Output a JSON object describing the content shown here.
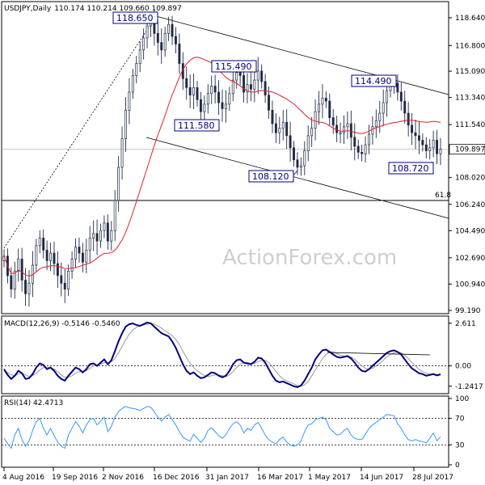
{
  "header": {
    "symbol": "USDJPY,Daily",
    "ohlc": "110.174 110.214 109.660 109.897",
    "macd_label": "MACD(12,26,9) -0.5146 -0.5460",
    "rsi_label": "RSI(14) 42.4713"
  },
  "watermark": "ActionForex.com",
  "colors": {
    "candle": "#1f2a44",
    "ma": "#e0202a",
    "macd": "#00007f",
    "signal": "#9a9a9a",
    "rsi": "#3399ff",
    "channel": "#000000",
    "box_border": "#000080"
  },
  "chart_data": [
    {
      "type": "candlestick",
      "name": "price",
      "ylim": [
        99.19,
        119.5
      ],
      "y_ticks": [
        "118.640",
        "116.800",
        "115.090",
        "113.340",
        "111.540",
        "109.897",
        "108.020",
        "106.240",
        "104.490",
        "102.690",
        "100.940",
        "99.190"
      ],
      "current_price": "109.897",
      "x_ticks": [
        "4 Aug 2016",
        "19 Sep 2016",
        "2 Nov 2016",
        "16 Dec 2016",
        "31 Jan 2017",
        "16 Mar 2017",
        "1 May 2017",
        "14 Jun 2017",
        "28 Jul 2017"
      ],
      "close_series": [
        102.8,
        101.5,
        100.6,
        101.8,
        102.6,
        101.2,
        100.3,
        101.0,
        102.2,
        103.5,
        104.0,
        103.2,
        102.5,
        103.0,
        102.3,
        101.5,
        101.0,
        100.6,
        101.8,
        102.6,
        103.4,
        103.0,
        102.4,
        103.2,
        104.0,
        104.3,
        103.8,
        104.5,
        105.0,
        103.8,
        104.5,
        106.5,
        108.7,
        110.6,
        112.5,
        113.7,
        114.8,
        115.6,
        116.5,
        117.3,
        118.1,
        118.3,
        117.6,
        117.0,
        116.5,
        117.6,
        118.2,
        117.4,
        116.9,
        115.6,
        114.6,
        114.0,
        113.5,
        114.0,
        113.2,
        112.4,
        112.9,
        113.6,
        114.1,
        113.7,
        113.0,
        112.6,
        112.9,
        113.6,
        114.5,
        115.0,
        114.8,
        113.7,
        114.2,
        113.9,
        114.5,
        115.1,
        114.4,
        113.5,
        112.5,
        111.6,
        111.0,
        111.3,
        111.7,
        110.8,
        110.0,
        109.2,
        108.7,
        108.8,
        109.8,
        110.8,
        111.3,
        112.4,
        112.9,
        113.3,
        113.1,
        112.0,
        111.5,
        111.0,
        111.0,
        111.4,
        111.6,
        110.7,
        110.1,
        109.7,
        109.6,
        110.2,
        110.9,
        111.4,
        111.8,
        112.3,
        113.0,
        113.8,
        114.1,
        114.3,
        113.7,
        113.1,
        112.3,
        111.5,
        111.0,
        110.8,
        110.5,
        110.2,
        109.8,
        110.0,
        110.5,
        109.6,
        109.9
      ],
      "annotations": [
        {
          "label": "118.650",
          "type": "swing-high"
        },
        {
          "label": "115.490",
          "type": "swing-high"
        },
        {
          "label": "111.580",
          "type": "swing-low"
        },
        {
          "label": "114.490",
          "type": "swing-high"
        },
        {
          "label": "108.120",
          "type": "swing-low"
        },
        {
          "label": "108.720",
          "type": "swing-low"
        },
        {
          "label": "61.8",
          "type": "fibonacci-level",
          "value": 106.5
        }
      ]
    },
    {
      "type": "line",
      "name": "MACD(12,26,9)",
      "y_ticks": [
        "2.611",
        "0.00",
        "-1.2417"
      ],
      "ylim": [
        -1.55,
        2.8
      ],
      "series_values": [
        -0.2,
        -0.55,
        -0.8,
        -0.6,
        -0.3,
        -0.45,
        -0.8,
        -0.75,
        -0.5,
        -0.1,
        0.15,
        0.05,
        -0.2,
        -0.1,
        -0.3,
        -0.6,
        -0.8,
        -0.9,
        -0.6,
        -0.35,
        -0.1,
        -0.2,
        -0.4,
        -0.2,
        0.1,
        0.15,
        0.0,
        0.2,
        0.4,
        0.1,
        0.35,
        0.9,
        1.5,
        2.0,
        2.4,
        2.55,
        2.6,
        2.5,
        2.45,
        2.55,
        2.65,
        2.6,
        2.4,
        2.2,
        2.0,
        1.9,
        1.8,
        1.5,
        1.1,
        0.6,
        0.1,
        -0.3,
        -0.5,
        -0.4,
        -0.6,
        -0.75,
        -0.7,
        -0.55,
        -0.4,
        -0.45,
        -0.6,
        -0.7,
        -0.6,
        -0.3,
        0.1,
        0.35,
        0.4,
        0.2,
        0.15,
        0.1,
        0.25,
        0.5,
        0.45,
        0.2,
        -0.2,
        -0.6,
        -0.9,
        -1.0,
        -0.95,
        -1.05,
        -1.15,
        -1.25,
        -1.3,
        -1.2,
        -0.9,
        -0.5,
        -0.1,
        0.4,
        0.7,
        0.95,
        1.0,
        0.85,
        0.7,
        0.55,
        0.5,
        0.55,
        0.6,
        0.45,
        0.2,
        -0.1,
        -0.3,
        -0.35,
        -0.2,
        0.0,
        0.2,
        0.4,
        0.6,
        0.8,
        0.9,
        0.95,
        0.85,
        0.7,
        0.4,
        0.1,
        -0.15,
        -0.3,
        -0.45,
        -0.5,
        -0.6,
        -0.55,
        -0.5,
        -0.58,
        -0.51
      ],
      "signal_values": [
        -0.3,
        -0.4,
        -0.55,
        -0.6,
        -0.5,
        -0.45,
        -0.55,
        -0.65,
        -0.6,
        -0.45,
        -0.25,
        -0.1,
        -0.1,
        -0.1,
        -0.2,
        -0.35,
        -0.55,
        -0.7,
        -0.7,
        -0.6,
        -0.45,
        -0.35,
        -0.35,
        -0.3,
        -0.15,
        0.0,
        0.05,
        0.1,
        0.2,
        0.2,
        0.25,
        0.45,
        0.8,
        1.2,
        1.6,
        1.95,
        2.2,
        2.35,
        2.45,
        2.5,
        2.55,
        2.6,
        2.55,
        2.45,
        2.3,
        2.15,
        2.0,
        1.85,
        1.6,
        1.3,
        0.9,
        0.5,
        0.15,
        -0.1,
        -0.3,
        -0.45,
        -0.6,
        -0.65,
        -0.6,
        -0.55,
        -0.55,
        -0.6,
        -0.65,
        -0.55,
        -0.35,
        -0.1,
        0.1,
        0.2,
        0.2,
        0.15,
        0.15,
        0.25,
        0.35,
        0.35,
        0.2,
        -0.05,
        -0.35,
        -0.6,
        -0.8,
        -0.9,
        -1.0,
        -1.1,
        -1.2,
        -1.25,
        -1.15,
        -0.95,
        -0.6,
        -0.25,
        0.1,
        0.45,
        0.7,
        0.85,
        0.85,
        0.75,
        0.65,
        0.6,
        0.6,
        0.55,
        0.4,
        0.2,
        0.0,
        -0.15,
        -0.2,
        -0.15,
        0.0,
        0.15,
        0.35,
        0.55,
        0.7,
        0.8,
        0.85,
        0.8,
        0.65,
        0.45,
        0.2,
        0.0,
        -0.2,
        -0.35,
        -0.45,
        -0.5,
        -0.5,
        -0.52,
        -0.546
      ],
      "divergence_line": true
    },
    {
      "type": "line",
      "name": "RSI(14)",
      "y_ticks": [
        "100",
        "70",
        "30",
        "0"
      ],
      "ylim": [
        0,
        100
      ],
      "values": [
        40,
        32,
        25,
        45,
        55,
        38,
        28,
        36,
        52,
        65,
        70,
        55,
        45,
        55,
        44,
        34,
        28,
        25,
        45,
        55,
        65,
        58,
        48,
        60,
        68,
        70,
        60,
        66,
        72,
        50,
        58,
        72,
        80,
        85,
        88,
        86,
        85,
        84,
        82,
        85,
        88,
        87,
        80,
        72,
        66,
        72,
        76,
        68,
        60,
        50,
        42,
        38,
        36,
        46,
        40,
        34,
        40,
        52,
        56,
        50,
        44,
        40,
        45,
        55,
        62,
        65,
        60,
        48,
        55,
        52,
        60,
        64,
        55,
        45,
        38,
        34,
        32,
        38,
        42,
        34,
        30,
        28,
        30,
        36,
        50,
        60,
        62,
        68,
        70,
        72,
        68,
        55,
        50,
        45,
        46,
        52,
        55,
        45,
        40,
        38,
        38,
        46,
        55,
        60,
        64,
        68,
        72,
        76,
        75,
        74,
        62,
        55,
        45,
        38,
        36,
        38,
        36,
        35,
        33,
        40,
        48,
        36,
        42.47
      ]
    }
  ]
}
